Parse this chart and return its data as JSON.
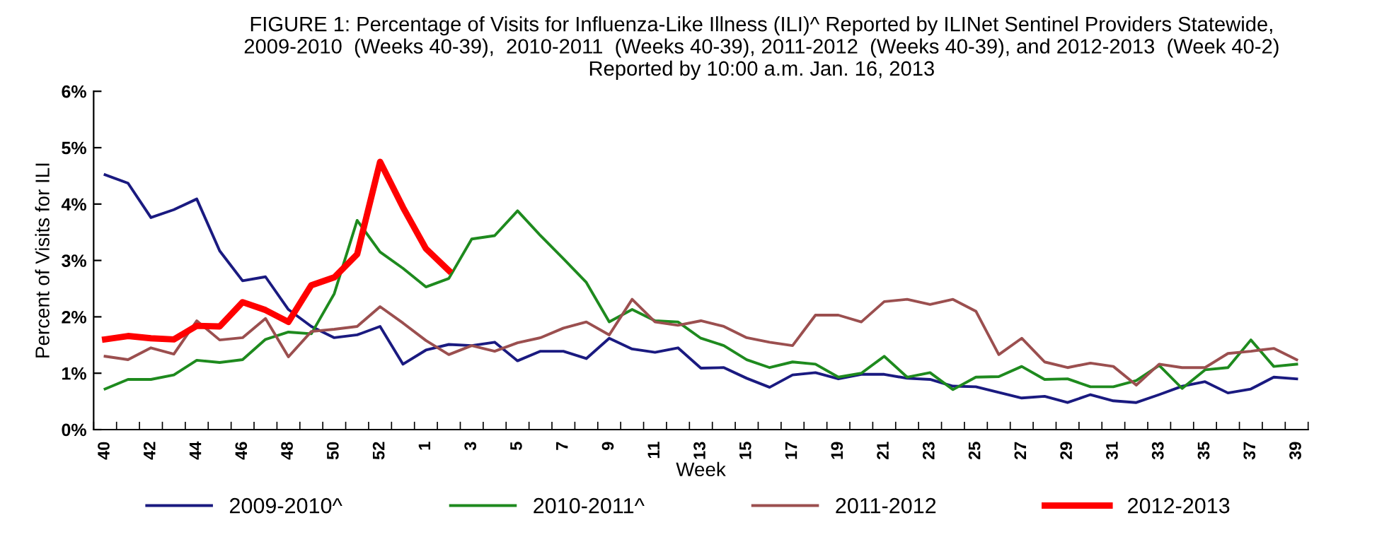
{
  "chart_data": {
    "type": "line",
    "title": "FIGURE 1: Percentage of Visits for Influenza-Like Illness (ILI)^ Reported by ILINet Sentinel Providers Statewide,\n2009-2010  (Weeks 40-39),  2010-2011  (Weeks 40-39), 2011-2012  (Weeks 40-39), and 2012-2013  (Week 40-2)\nReported by 10:00 a.m. Jan. 16, 2013",
    "xlabel": "Week",
    "ylabel": "Percent of Visits for ILI",
    "categories": [
      "40",
      null,
      "42",
      null,
      "44",
      null,
      "46",
      null,
      "48",
      null,
      "50",
      null,
      "52",
      null,
      "1",
      null,
      "3",
      null,
      "5",
      null,
      "7",
      null,
      "9",
      null,
      "11",
      null,
      "13",
      null,
      "15",
      null,
      "17",
      null,
      "19",
      null,
      "21",
      null,
      "23",
      null,
      "25",
      null,
      "27",
      null,
      "29",
      null,
      "31",
      null,
      "33",
      null,
      "35",
      null,
      "37",
      null,
      "39"
    ],
    "ylim": [
      0,
      6
    ],
    "yticks": [
      {
        "value": 0,
        "label": "0%"
      },
      {
        "value": 1,
        "label": "1%"
      },
      {
        "value": 2,
        "label": "2%"
      },
      {
        "value": 3,
        "label": "3%"
      },
      {
        "value": 4,
        "label": "4%"
      },
      {
        "value": 5,
        "label": "5%"
      },
      {
        "value": 6,
        "label": "6%"
      }
    ],
    "grid": false,
    "legend": "bottom",
    "marker": "none",
    "line_style": "solid",
    "series": [
      {
        "name": "2009-2010^",
        "color": "#1a1a80",
        "values": [
          4.52,
          4.37,
          3.76,
          3.9,
          4.09,
          3.17,
          2.64,
          2.71,
          2.13,
          1.83,
          1.63,
          1.68,
          1.83,
          1.16,
          1.41,
          1.51,
          1.49,
          1.55,
          1.22,
          1.39,
          1.39,
          1.26,
          1.62,
          1.43,
          1.37,
          1.45,
          1.09,
          1.1,
          0.91,
          0.75,
          0.97,
          1.01,
          0.9,
          0.98,
          0.98,
          0.91,
          0.89,
          0.77,
          0.76,
          0.66,
          0.56,
          0.59,
          0.48,
          0.62,
          0.51,
          0.48,
          0.62,
          0.77,
          0.85,
          0.65,
          0.72,
          0.93,
          0.9
        ]
      },
      {
        "name": "2010-2011^",
        "color": "#1e8a1e",
        "values": [
          0.72,
          0.89,
          0.89,
          0.97,
          1.23,
          1.19,
          1.24,
          1.6,
          1.73,
          1.7,
          2.41,
          3.71,
          3.15,
          2.86,
          2.53,
          2.68,
          3.38,
          3.44,
          3.88,
          3.44,
          3.03,
          2.61,
          1.91,
          2.13,
          1.93,
          1.91,
          1.62,
          1.49,
          1.24,
          1.1,
          1.2,
          1.16,
          0.93,
          1.0,
          1.3,
          0.93,
          1.01,
          0.71,
          0.93,
          0.94,
          1.12,
          0.89,
          0.9,
          0.76,
          0.76,
          0.87,
          1.14,
          0.73,
          1.06,
          1.1,
          1.59,
          1.12,
          1.16
        ]
      },
      {
        "name": "2011-2012",
        "color": "#9b4f4f",
        "values": [
          1.3,
          1.24,
          1.45,
          1.34,
          1.93,
          1.59,
          1.63,
          1.97,
          1.29,
          1.74,
          1.78,
          1.83,
          2.18,
          1.89,
          1.58,
          1.33,
          1.49,
          1.39,
          1.54,
          1.63,
          1.8,
          1.91,
          1.68,
          2.31,
          1.91,
          1.85,
          1.93,
          1.83,
          1.63,
          1.55,
          1.49,
          2.03,
          2.03,
          1.91,
          2.27,
          2.31,
          2.22,
          2.31,
          2.1,
          1.33,
          1.62,
          1.2,
          1.1,
          1.18,
          1.12,
          0.79,
          1.16,
          1.1,
          1.1,
          1.35,
          1.39,
          1.44,
          1.24
        ]
      },
      {
        "name": "2012-2013",
        "color": "#ff0000",
        "values": [
          1.6,
          1.66,
          1.62,
          1.6,
          1.84,
          1.83,
          2.26,
          2.12,
          1.91,
          2.56,
          2.7,
          3.11,
          4.75,
          3.94,
          3.21,
          2.82,
          null,
          null,
          null,
          null,
          null,
          null,
          null,
          null,
          null,
          null,
          null,
          null,
          null,
          null,
          null,
          null,
          null,
          null,
          null,
          null,
          null,
          null,
          null,
          null,
          null,
          null,
          null,
          null,
          null,
          null,
          null,
          null,
          null,
          null,
          null,
          null,
          null
        ]
      }
    ]
  }
}
